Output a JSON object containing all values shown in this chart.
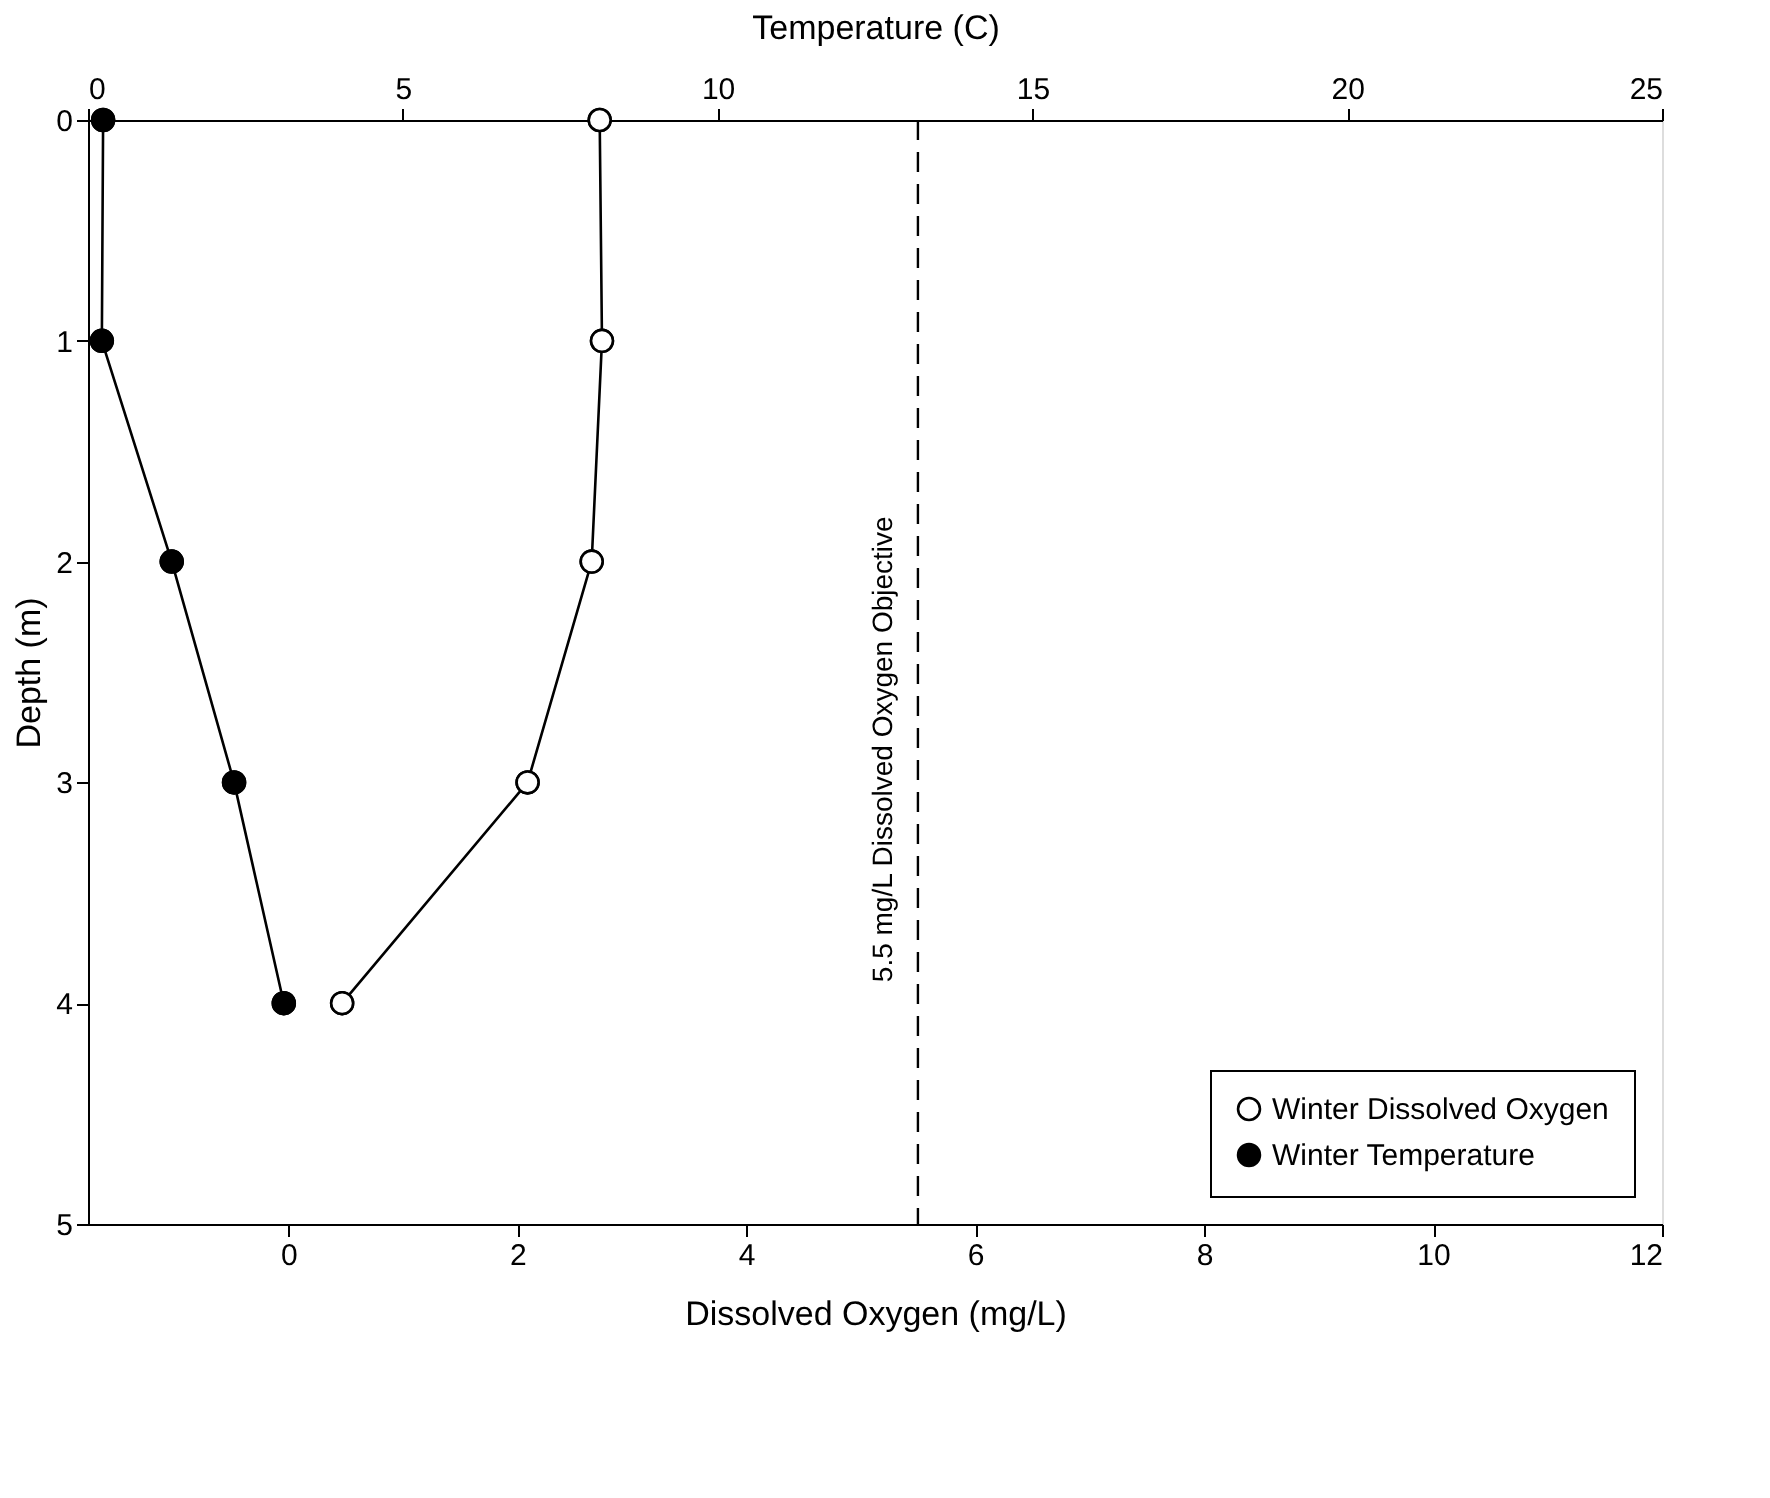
{
  "chart_data": {
    "type": "line",
    "xlabel": "Dissolved Oxygen (mg/L)",
    "x2label": "Temperature (C)",
    "ylabel": "Depth (m)",
    "xlim": [
      -1.75,
      12
    ],
    "xticks": [
      0,
      2,
      4,
      6,
      8,
      10,
      12
    ],
    "x2lim": [
      0,
      25
    ],
    "x2ticks": [
      0,
      5,
      10,
      15,
      20,
      25
    ],
    "ylim": [
      5,
      0
    ],
    "yticks": [
      0,
      1,
      2,
      3,
      4,
      5
    ],
    "marker": "circle",
    "line_style": "solid",
    "grid": false,
    "legend": "bottom right",
    "series": [
      {
        "name": "Winter Dissolved Oxygen",
        "color": "#000000",
        "colors": [
          "#ffffff",
          "#ffffff",
          "#ffffff",
          "#ffffff",
          "#ffffff"
        ],
        "x": [
          2.72,
          2.74,
          2.65,
          2.09,
          0.47
        ],
        "values": [
          0,
          1,
          2,
          3,
          4
        ]
      },
      {
        "name": "Winter Temperature",
        "color": "#000000",
        "colors": [
          "#000000",
          "#000000",
          "#000000",
          "#000000",
          "#000000"
        ],
        "axis": "x2",
        "x": [
          0.24,
          0.22,
          1.33,
          2.32,
          3.11
        ],
        "values": [
          0,
          1,
          2,
          3,
          4
        ]
      }
    ],
    "ref_lines": [
      {
        "axis": "x",
        "value": 5.5,
        "label": "5.5 mg/L Dissolved Oxygen Objective",
        "line_style": "dashed",
        "color": "#000000"
      }
    ]
  }
}
